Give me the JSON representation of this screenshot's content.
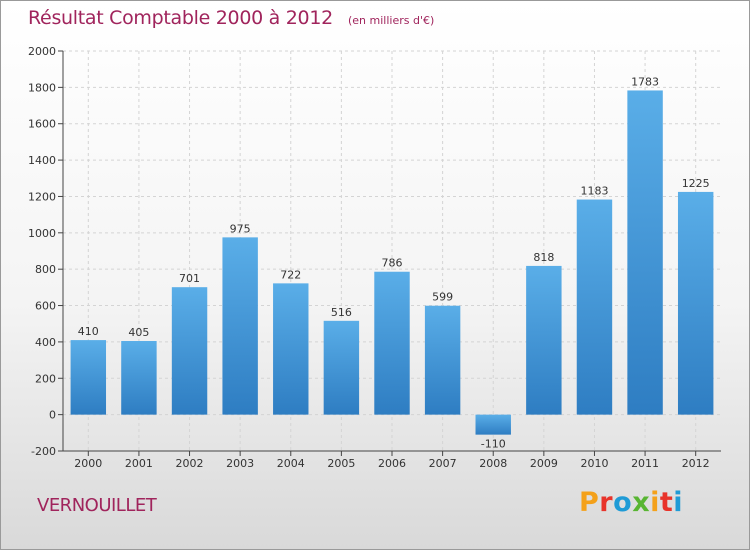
{
  "header": {
    "title": "Résultat Comptable 2000 à 2012",
    "unit": "(en milliers d'€)"
  },
  "footer": {
    "city": "VERNOUILLET",
    "logo_text": "Proxiti",
    "logo_colors": [
      "#f4a11a",
      "#e8332a",
      "#1f9bd6",
      "#58b532",
      "#f4a11a",
      "#e8332a",
      "#1f9bd6"
    ]
  },
  "chart_data": {
    "type": "bar",
    "categories": [
      "2000",
      "2001",
      "2002",
      "2003",
      "2004",
      "2005",
      "2006",
      "2007",
      "2008",
      "2009",
      "2010",
      "2011",
      "2012"
    ],
    "values": [
      410,
      405,
      701,
      975,
      722,
      516,
      786,
      599,
      -110,
      818,
      1183,
      1783,
      1225
    ],
    "data_labels": [
      "410",
      "405",
      "701",
      "975",
      "722",
      "516",
      "786",
      "599",
      "-110",
      "818",
      "1183",
      "1783",
      "1225"
    ],
    "yticks": [
      "-200",
      "0",
      "200",
      "400",
      "600",
      "800",
      "1000",
      "1200",
      "1400",
      "1600",
      "1800",
      "2000"
    ],
    "ylim": [
      -200,
      2000
    ],
    "grid": true,
    "bar_color_top": "#5aaee8",
    "bar_color_bottom": "#2e7dc2"
  }
}
